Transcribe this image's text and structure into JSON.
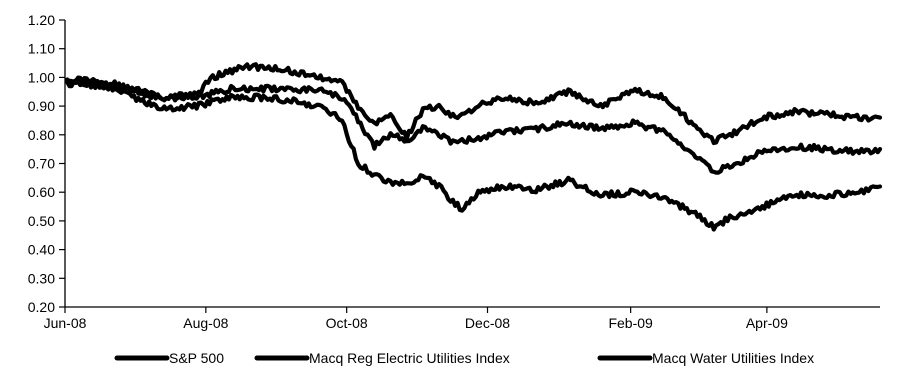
{
  "chart_data": {
    "type": "line",
    "title": "",
    "xlabel": "",
    "ylabel": "",
    "ylim": [
      0.2,
      1.2
    ],
    "y_ticks": [
      "0.20",
      "0.30",
      "0.40",
      "0.50",
      "0.60",
      "0.70",
      "0.80",
      "0.90",
      "1.00",
      "1.10",
      "1.20"
    ],
    "x_range": [
      "2008-06-01",
      "2009-05-20"
    ],
    "x_ticks": [
      {
        "date": "2008-06-01",
        "label": "Jun-08"
      },
      {
        "date": "2008-08-01",
        "label": "Aug-08"
      },
      {
        "date": "2008-10-01",
        "label": "Oct-08"
      },
      {
        "date": "2008-12-01",
        "label": "Dec-08"
      },
      {
        "date": "2009-02-01",
        "label": "Feb-09"
      },
      {
        "date": "2009-04-01",
        "label": "Apr-09"
      }
    ],
    "grid": false,
    "legend_position": "bottom",
    "series": [
      {
        "name": "S&P 500",
        "color": "#000000",
        "points": [
          [
            "2008-06-02",
            0.98
          ],
          [
            "2008-06-16",
            0.98
          ],
          [
            "2008-06-30",
            0.93
          ],
          [
            "2008-07-14",
            0.89
          ],
          [
            "2008-07-28",
            0.9
          ],
          [
            "2008-08-11",
            0.93
          ],
          [
            "2008-08-25",
            0.93
          ],
          [
            "2008-09-08",
            0.92
          ],
          [
            "2008-09-22",
            0.89
          ],
          [
            "2008-09-29",
            0.85
          ],
          [
            "2008-10-06",
            0.7
          ],
          [
            "2008-10-13",
            0.66
          ],
          [
            "2008-10-20",
            0.63
          ],
          [
            "2008-10-27",
            0.63
          ],
          [
            "2008-11-03",
            0.66
          ],
          [
            "2008-11-10",
            0.62
          ],
          [
            "2008-11-17",
            0.56
          ],
          [
            "2008-11-20",
            0.54
          ],
          [
            "2008-11-27",
            0.6
          ],
          [
            "2008-12-08",
            0.62
          ],
          [
            "2008-12-22",
            0.61
          ],
          [
            "2009-01-05",
            0.64
          ],
          [
            "2009-01-19",
            0.59
          ],
          [
            "2009-02-02",
            0.6
          ],
          [
            "2009-02-16",
            0.58
          ],
          [
            "2009-03-02",
            0.52
          ],
          [
            "2009-03-09",
            0.48
          ],
          [
            "2009-03-16",
            0.51
          ],
          [
            "2009-03-30",
            0.55
          ],
          [
            "2009-04-13",
            0.59
          ],
          [
            "2009-04-27",
            0.59
          ],
          [
            "2009-05-11",
            0.6
          ],
          [
            "2009-05-20",
            0.62
          ]
        ]
      },
      {
        "name": "Macq Reg Electric Utilities Index",
        "color": "#000000",
        "points": [
          [
            "2008-06-02",
            0.98
          ],
          [
            "2008-06-16",
            0.97
          ],
          [
            "2008-06-30",
            0.95
          ],
          [
            "2008-07-14",
            0.93
          ],
          [
            "2008-07-28",
            0.93
          ],
          [
            "2008-08-11",
            0.96
          ],
          [
            "2008-08-25",
            0.96
          ],
          [
            "2008-09-08",
            0.96
          ],
          [
            "2008-09-22",
            0.95
          ],
          [
            "2008-09-29",
            0.93
          ],
          [
            "2008-10-06",
            0.85
          ],
          [
            "2008-10-13",
            0.76
          ],
          [
            "2008-10-20",
            0.8
          ],
          [
            "2008-10-27",
            0.78
          ],
          [
            "2008-11-03",
            0.82
          ],
          [
            "2008-11-10",
            0.8
          ],
          [
            "2008-11-17",
            0.77
          ],
          [
            "2008-11-27",
            0.79
          ],
          [
            "2008-12-08",
            0.81
          ],
          [
            "2008-12-22",
            0.82
          ],
          [
            "2009-01-05",
            0.84
          ],
          [
            "2009-01-19",
            0.82
          ],
          [
            "2009-02-02",
            0.84
          ],
          [
            "2009-02-16",
            0.81
          ],
          [
            "2009-03-02",
            0.72
          ],
          [
            "2009-03-09",
            0.67
          ],
          [
            "2009-03-16",
            0.69
          ],
          [
            "2009-03-30",
            0.74
          ],
          [
            "2009-04-13",
            0.76
          ],
          [
            "2009-04-27",
            0.75
          ],
          [
            "2009-05-11",
            0.74
          ],
          [
            "2009-05-20",
            0.75
          ]
        ]
      },
      {
        "name": "Macq Water Utilities Index",
        "color": "#000000",
        "points": [
          [
            "2008-06-02",
            0.99
          ],
          [
            "2008-06-16",
            0.99
          ],
          [
            "2008-06-30",
            0.96
          ],
          [
            "2008-07-14",
            0.93
          ],
          [
            "2008-07-28",
            0.94
          ],
          [
            "2008-08-04",
            1.0
          ],
          [
            "2008-08-18",
            1.04
          ],
          [
            "2008-09-01",
            1.03
          ],
          [
            "2008-09-15",
            1.01
          ],
          [
            "2008-09-29",
            0.98
          ],
          [
            "2008-10-06",
            0.9
          ],
          [
            "2008-10-13",
            0.84
          ],
          [
            "2008-10-20",
            0.87
          ],
          [
            "2008-10-27",
            0.79
          ],
          [
            "2008-11-03",
            0.89
          ],
          [
            "2008-11-10",
            0.9
          ],
          [
            "2008-11-17",
            0.86
          ],
          [
            "2008-11-27",
            0.9
          ],
          [
            "2008-12-08",
            0.93
          ],
          [
            "2008-12-22",
            0.91
          ],
          [
            "2009-01-05",
            0.95
          ],
          [
            "2009-01-19",
            0.9
          ],
          [
            "2009-02-02",
            0.96
          ],
          [
            "2009-02-16",
            0.93
          ],
          [
            "2009-03-02",
            0.82
          ],
          [
            "2009-03-09",
            0.78
          ],
          [
            "2009-03-16",
            0.8
          ],
          [
            "2009-03-30",
            0.86
          ],
          [
            "2009-04-13",
            0.88
          ],
          [
            "2009-04-27",
            0.87
          ],
          [
            "2009-05-11",
            0.86
          ],
          [
            "2009-05-20",
            0.86
          ]
        ]
      }
    ]
  }
}
